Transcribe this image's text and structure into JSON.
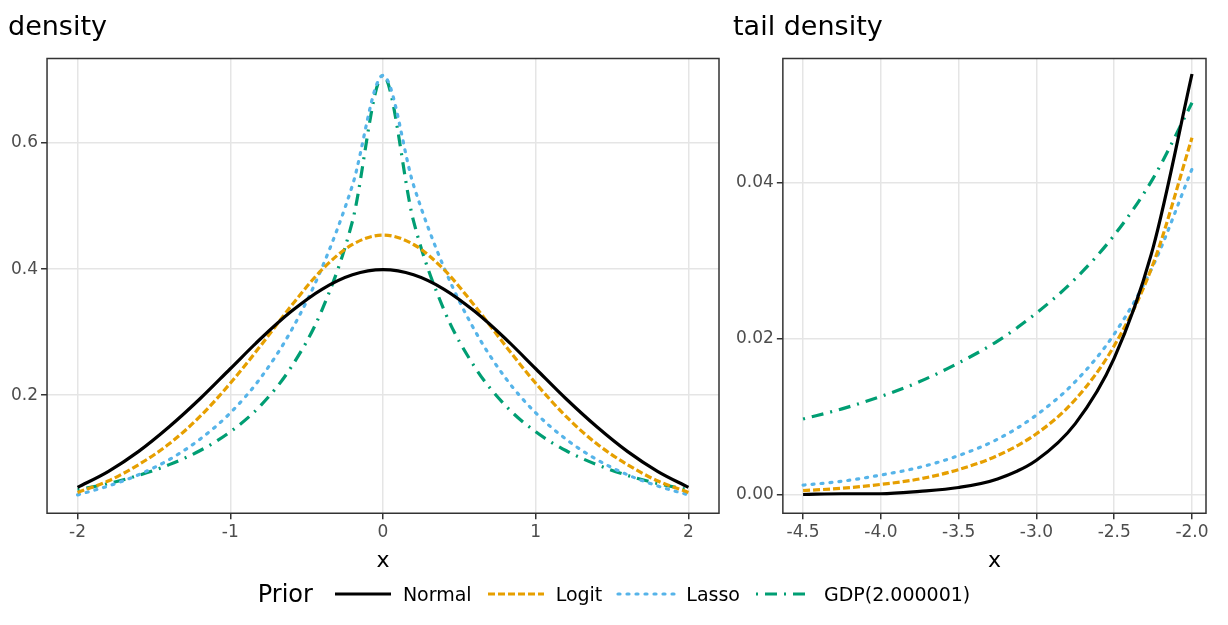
{
  "chart_data": [
    {
      "type": "line",
      "title": "density",
      "xlabel": "x",
      "legend_title": "Prior",
      "legend": "bottom",
      "grid": true,
      "x": [
        -2,
        -1.8,
        -1.6,
        -1.4,
        -1.2,
        -1,
        -0.8,
        -0.6,
        -0.4,
        -0.2,
        0,
        0.2,
        0.4,
        0.6,
        0.8,
        1,
        1.2,
        1.4,
        1.6,
        1.8,
        2
      ],
      "xlim": [
        -2.2,
        2.2
      ],
      "xticks": [
        -2,
        -1,
        0,
        1,
        2
      ],
      "ylim": [
        0.013,
        0.734
      ],
      "yticks": [
        0.2,
        0.4,
        0.6
      ],
      "series": [
        {
          "name": "Normal",
          "color": "#000000",
          "line_style": "solid",
          "values": [
            0.054,
            0.079,
            0.111,
            0.15,
            0.194,
            0.242,
            0.29,
            0.333,
            0.368,
            0.391,
            0.399,
            0.391,
            0.368,
            0.333,
            0.29,
            0.242,
            0.194,
            0.15,
            0.111,
            0.079,
            0.054
          ]
        },
        {
          "name": "Logit",
          "color": "#e69f00",
          "line_style": "dashed",
          "values": [
            0.046,
            0.064,
            0.09,
            0.123,
            0.166,
            0.219,
            0.279,
            0.342,
            0.399,
            0.439,
            0.454,
            0.439,
            0.399,
            0.342,
            0.279,
            0.219,
            0.166,
            0.123,
            0.09,
            0.064,
            0.046
          ]
        },
        {
          "name": "Lasso",
          "color": "#56b4e9",
          "line_style": "dotted",
          "values": [
            0.042,
            0.056,
            0.074,
            0.098,
            0.13,
            0.172,
            0.228,
            0.303,
            0.402,
            0.533,
            0.707,
            0.533,
            0.402,
            0.303,
            0.228,
            0.172,
            0.13,
            0.098,
            0.074,
            0.056,
            0.042
          ]
        },
        {
          "name": "GDP(2.000001)",
          "color": "#009e73",
          "line_style": "dashdot",
          "values": [
            0.05,
            0.06,
            0.073,
            0.09,
            0.112,
            0.142,
            0.184,
            0.245,
            0.335,
            0.476,
            0.707,
            0.476,
            0.335,
            0.245,
            0.184,
            0.142,
            0.112,
            0.09,
            0.073,
            0.06,
            0.05
          ]
        }
      ]
    },
    {
      "type": "line",
      "title": "tail density",
      "xlabel": "x",
      "grid": true,
      "x": [
        -4.5,
        -4.25,
        -4,
        -3.75,
        -3.5,
        -3.25,
        -3,
        -2.75,
        -2.5,
        -2.25,
        -2
      ],
      "xlim": [
        -4.63,
        -1.91
      ],
      "xticks": [
        {
          "value": -4.5,
          "label": "-4.5"
        },
        {
          "value": -4,
          "label": "-4.0"
        },
        {
          "value": -3.5,
          "label": "-3.5"
        },
        {
          "value": -3,
          "label": "-3.0"
        },
        {
          "value": -2.5,
          "label": "-2.5"
        },
        {
          "value": -2,
          "label": "-2.0"
        }
      ],
      "ylim": [
        -0.0024,
        0.056
      ],
      "yticks": [
        {
          "value": 0,
          "label": "0.00"
        },
        {
          "value": 0.02,
          "label": "0.02"
        },
        {
          "value": 0.04,
          "label": "0.04"
        }
      ],
      "series": [
        {
          "color": "#000000",
          "line_style": "solid",
          "values": [
            0.0,
            0.0001,
            0.0001,
            0.0004,
            0.0009,
            0.002,
            0.0044,
            0.0091,
            0.0175,
            0.0317,
            0.054
          ]
        },
        {
          "color": "#e69f00",
          "line_style": "dashed",
          "values": [
            0.0005,
            0.0008,
            0.0013,
            0.002,
            0.0032,
            0.005,
            0.0078,
            0.0122,
            0.0191,
            0.0296,
            0.0458
          ]
        },
        {
          "color": "#56b4e9",
          "line_style": "dotted",
          "values": [
            0.0012,
            0.0017,
            0.0025,
            0.0035,
            0.005,
            0.0071,
            0.0102,
            0.0145,
            0.0206,
            0.0294,
            0.0418
          ]
        },
        {
          "color": "#009e73",
          "line_style": "dashdot",
          "values": [
            0.0097,
            0.011,
            0.0126,
            0.0145,
            0.0169,
            0.0197,
            0.0233,
            0.0277,
            0.0333,
            0.0406,
            0.0503
          ]
        }
      ]
    }
  ]
}
